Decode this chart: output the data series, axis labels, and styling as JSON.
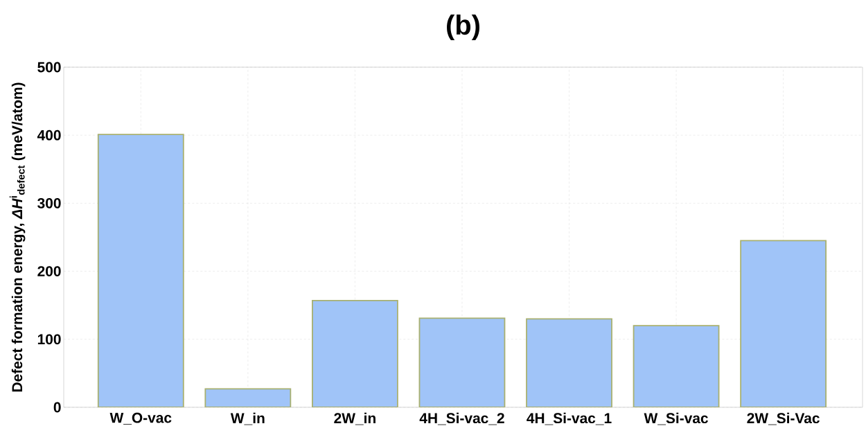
{
  "chart_data": {
    "type": "bar",
    "title": "(b)",
    "ylabel": "Defect formation energy, *ΔH*$^{i}$$_{defect}$ (meV/atom)",
    "categories": [
      "W_O-vac",
      "W_in",
      "2W_in",
      "4H_Si-vac_2",
      "4H_Si-vac_1",
      "W_Si-vac",
      "2W_Si-Vac"
    ],
    "values": [
      401,
      27,
      157,
      131,
      130,
      120,
      245
    ],
    "color": "#a0c4f8",
    "ylim": [
      0,
      500
    ],
    "yticks": [
      0,
      100,
      200,
      300,
      400,
      500
    ],
    "grid": true
  }
}
